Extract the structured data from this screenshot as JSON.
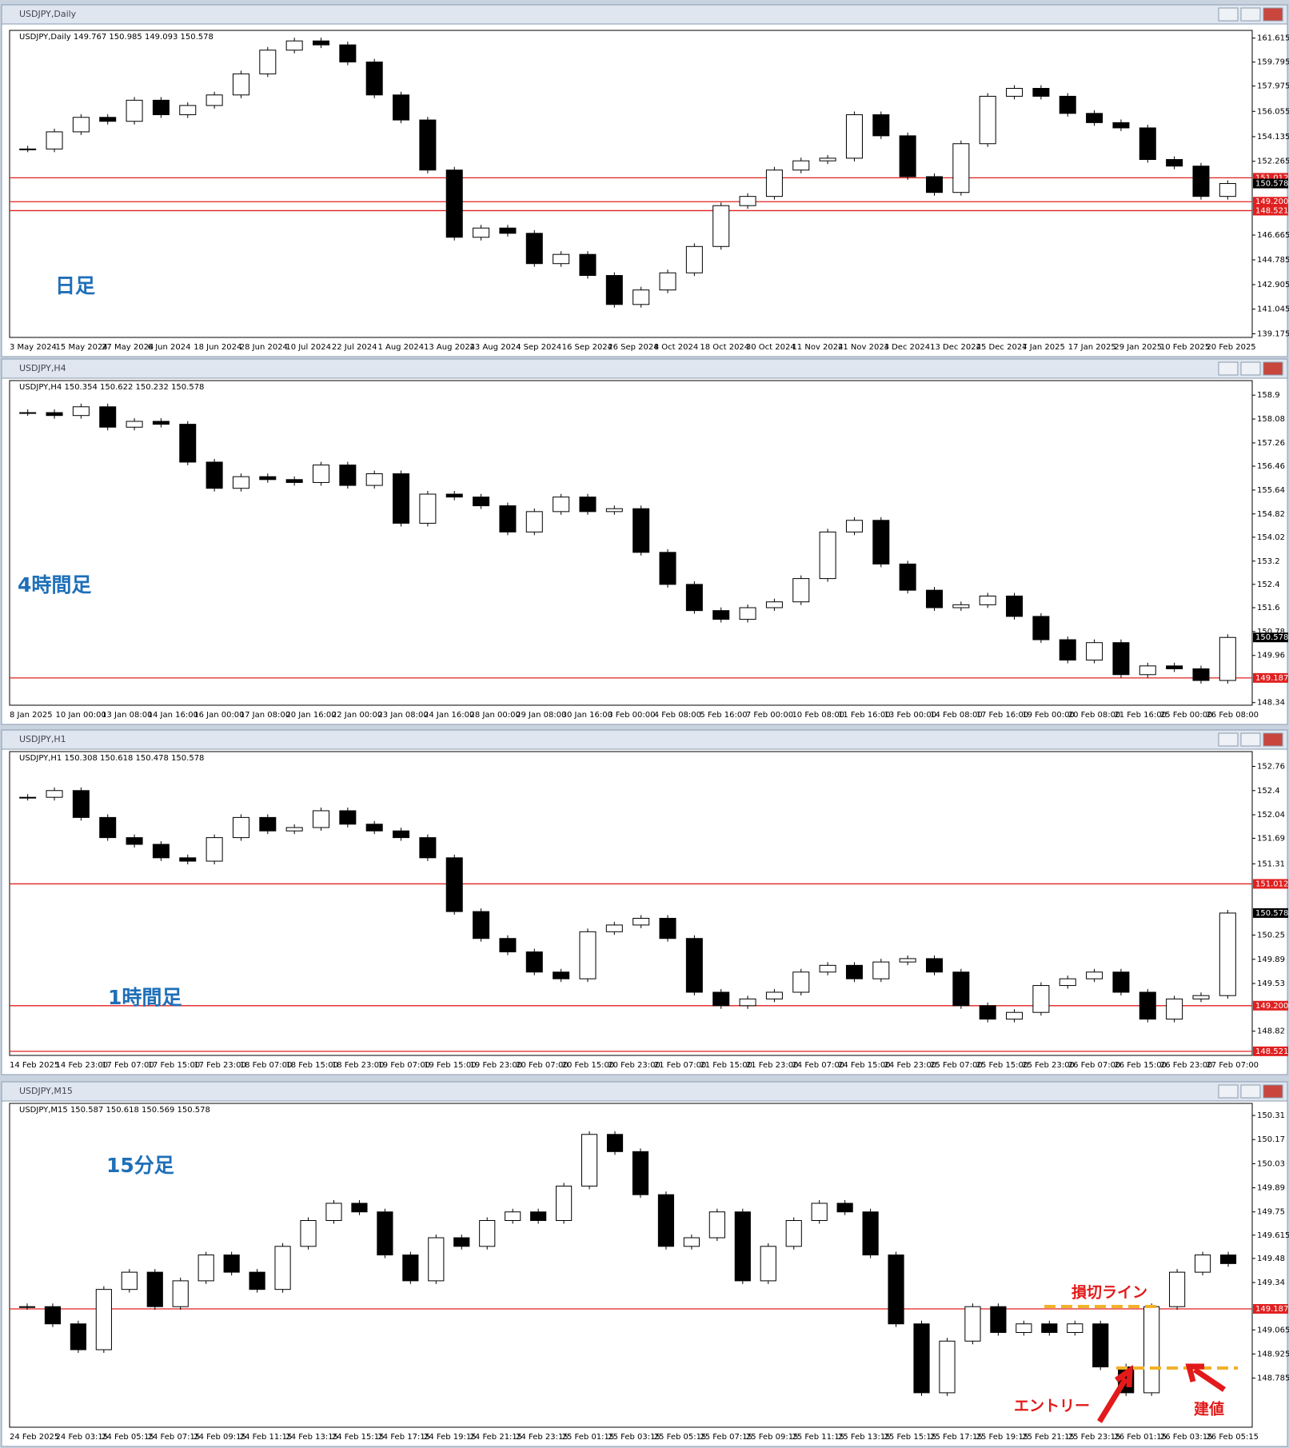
{
  "panels": [
    {
      "window_title": "USDJPY,Daily",
      "info": "USDJPY,Daily  149.767 150.985 149.093 150.578",
      "label": "日足",
      "ylim": [
        138.9,
        162.2
      ],
      "yticks": [
        161.615,
        159.795,
        157.975,
        156.055,
        154.135,
        152.265,
        146.665,
        144.785,
        142.905,
        141.045,
        139.175
      ],
      "hlines": [
        151.012,
        149.2,
        148.521
      ],
      "hline_labels": [
        "151.012",
        "149.200",
        "148.521"
      ],
      "current": 150.578,
      "categories": [
        "3 May 2024",
        "15 May 2024",
        "27 May 2024",
        "6 Jun 2024",
        "18 Jun 2024",
        "28 Jun 2024",
        "10 Jul 2024",
        "22 Jul 2024",
        "1 Aug 2024",
        "13 Aug 2024",
        "23 Aug 2024",
        "4 Sep 2024",
        "16 Sep 2024",
        "26 Sep 2024",
        "8 Oct 2024",
        "18 Oct 2024",
        "30 Oct 2024",
        "11 Nov 2024",
        "21 Nov 2024",
        "3 Dec 2024",
        "13 Dec 2024",
        "25 Dec 2024",
        "7 Jan 2025",
        "17 Jan 2025",
        "29 Jan 2025",
        "10 Feb 2025",
        "20 Feb 2025"
      ],
      "closes": [
        153.2,
        154.5,
        155.6,
        155.3,
        156.9,
        155.8,
        156.5,
        157.3,
        158.9,
        160.7,
        161.4,
        161.1,
        159.8,
        157.3,
        155.4,
        151.6,
        146.5,
        147.2,
        146.8,
        144.5,
        145.2,
        143.6,
        141.4,
        142.5,
        143.8,
        145.8,
        148.9,
        149.6,
        151.6,
        152.3,
        152.5,
        155.8,
        154.2,
        151.1,
        149.9,
        153.6,
        157.2,
        157.8,
        157.2,
        155.9,
        155.2,
        154.8,
        152.4,
        151.9,
        149.6,
        150.578
      ]
    },
    {
      "window_title": "USDJPY,H4",
      "info": "USDJPY,H4  150.354 150.622 150.232 150.578",
      "label": "4時間足",
      "ylim": [
        148.25,
        159.4
      ],
      "yticks": [
        158.9,
        158.08,
        157.26,
        156.46,
        155.64,
        154.82,
        154.02,
        153.2,
        152.4,
        151.6,
        150.78,
        149.96,
        148.34
      ],
      "hlines": [
        149.187
      ],
      "hline_labels": [
        "149.187"
      ],
      "current": 150.578,
      "categories": [
        "8 Jan 2025",
        "10 Jan 00:00",
        "13 Jan 08:00",
        "14 Jan 16:00",
        "16 Jan 00:00",
        "17 Jan 08:00",
        "20 Jan 16:00",
        "22 Jan 00:00",
        "23 Jan 08:00",
        "24 Jan 16:00",
        "28 Jan 00:00",
        "29 Jan 08:00",
        "30 Jan 16:00",
        "3 Feb 00:00",
        "4 Feb 08:00",
        "5 Feb 16:00",
        "7 Feb 00:00",
        "10 Feb 08:00",
        "11 Feb 16:00",
        "13 Feb 00:00",
        "14 Feb 08:00",
        "17 Feb 16:00",
        "19 Feb 00:00",
        "20 Feb 08:00",
        "21 Feb 16:00",
        "25 Feb 00:00",
        "26 Feb 08:00"
      ],
      "closes": [
        158.3,
        158.2,
        158.5,
        157.8,
        158.0,
        157.9,
        156.6,
        155.7,
        156.1,
        156.0,
        155.9,
        156.5,
        155.8,
        156.2,
        154.5,
        155.5,
        155.4,
        155.1,
        154.2,
        154.9,
        155.4,
        154.9,
        155.0,
        153.5,
        152.4,
        151.5,
        151.2,
        151.6,
        151.8,
        152.6,
        154.2,
        154.6,
        153.1,
        152.2,
        151.6,
        151.7,
        152.0,
        151.3,
        150.5,
        149.8,
        150.4,
        149.3,
        149.6,
        149.5,
        149.1,
        150.578
      ]
    },
    {
      "window_title": "USDJPY,H1",
      "info": "USDJPY,H1  150.308 150.618 150.478 150.578",
      "label": "1時間足",
      "ylim": [
        148.46,
        152.98
      ],
      "yticks": [
        152.76,
        152.4,
        152.04,
        151.69,
        151.31,
        150.25,
        149.89,
        149.53,
        148.82
      ],
      "hlines": [
        151.012,
        149.2,
        148.521
      ],
      "hline_labels": [
        "151.012",
        "149.200",
        "148.521"
      ],
      "current": 150.578,
      "categories": [
        "14 Feb 2025",
        "14 Feb 23:00",
        "17 Feb 07:00",
        "17 Feb 15:00",
        "17 Feb 23:00",
        "18 Feb 07:00",
        "18 Feb 15:00",
        "18 Feb 23:00",
        "19 Feb 07:00",
        "19 Feb 15:00",
        "19 Feb 23:00",
        "20 Feb 07:00",
        "20 Feb 15:00",
        "20 Feb 23:00",
        "21 Feb 07:00",
        "21 Feb 15:00",
        "21 Feb 23:00",
        "24 Feb 07:00",
        "24 Feb 15:00",
        "24 Feb 23:00",
        "25 Feb 07:00",
        "25 Feb 15:00",
        "25 Feb 23:00",
        "26 Feb 07:00",
        "26 Feb 15:00",
        "26 Feb 23:00",
        "27 Feb 07:00"
      ],
      "closes": [
        152.3,
        152.4,
        152.0,
        151.7,
        151.6,
        151.4,
        151.35,
        151.7,
        152.0,
        151.8,
        151.85,
        152.1,
        151.9,
        151.8,
        151.7,
        151.4,
        150.6,
        150.2,
        150.0,
        149.7,
        149.6,
        150.3,
        150.4,
        150.5,
        150.2,
        149.4,
        149.2,
        149.3,
        149.4,
        149.7,
        149.8,
        149.6,
        149.85,
        149.9,
        149.7,
        149.2,
        149.0,
        149.1,
        149.5,
        149.6,
        149.7,
        149.4,
        149.0,
        149.3,
        149.35,
        150.578
      ]
    },
    {
      "window_title": "USDJPY,M15",
      "info": "USDJPY,M15  150.587 150.618 150.569 150.578",
      "label": "15分足",
      "ylim": [
        148.5,
        150.38
      ],
      "yticks": [
        150.31,
        150.17,
        150.03,
        149.89,
        149.75,
        149.615,
        149.48,
        149.34,
        149.065,
        148.925,
        148.785
      ],
      "hlines": [
        149.187
      ],
      "hline_labels": [
        "149.187"
      ],
      "current": null,
      "categories": [
        "24 Feb 2025",
        "24 Feb 03:15",
        "24 Feb 05:15",
        "24 Feb 07:15",
        "24 Feb 09:15",
        "24 Feb 11:15",
        "24 Feb 13:15",
        "24 Feb 15:15",
        "24 Feb 17:15",
        "24 Feb 19:15",
        "24 Feb 21:15",
        "24 Feb 23:15",
        "25 Feb 01:15",
        "25 Feb 03:15",
        "25 Feb 05:15",
        "25 Feb 07:15",
        "25 Feb 09:15",
        "25 Feb 11:15",
        "25 Feb 13:15",
        "25 Feb 15:15",
        "25 Feb 17:15",
        "25 Feb 19:15",
        "25 Feb 21:15",
        "25 Feb 23:15",
        "26 Feb 01:15",
        "26 Feb 03:15",
        "26 Feb 05:15"
      ],
      "closes": [
        149.2,
        149.1,
        148.95,
        149.3,
        149.4,
        149.2,
        149.35,
        149.5,
        149.4,
        149.3,
        149.55,
        149.7,
        149.8,
        149.75,
        149.5,
        149.35,
        149.6,
        149.55,
        149.7,
        149.75,
        149.7,
        149.9,
        150.2,
        150.1,
        149.85,
        149.55,
        149.6,
        149.75,
        149.35,
        149.55,
        149.7,
        149.8,
        149.75,
        149.5,
        149.1,
        148.7,
        149.0,
        149.2,
        149.05,
        149.1,
        149.05,
        149.1,
        148.85,
        148.7,
        149.2,
        149.4,
        149.5,
        149.45
      ],
      "annotations": {
        "stop_line": "損切ライン",
        "entry": "エントリー",
        "breakeven": "建値"
      }
    }
  ]
}
